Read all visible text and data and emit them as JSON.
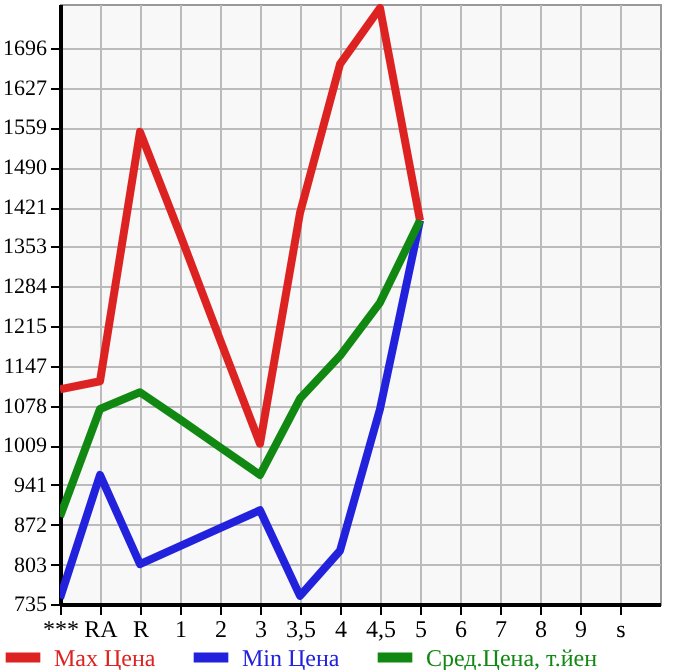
{
  "chart_data": {
    "type": "line",
    "categories": [
      "***",
      "RA",
      "R",
      "1",
      "2",
      "3",
      "3,5",
      "4",
      "4,5",
      "5",
      "6",
      "7",
      "8",
      "9",
      "s"
    ],
    "series": [
      {
        "name": "Max Цена",
        "color": "#dd2222",
        "values": [
          1106,
          1120,
          1551,
          1374,
          1192,
          1012,
          1411,
          1668,
          1765,
          1398,
          null,
          null,
          null,
          null,
          null
        ]
      },
      {
        "name": "Min Цена",
        "color": "#2222dd",
        "values": [
          745,
          958,
          804,
          835,
          866,
          897,
          749,
          827,
          1072,
          1398,
          null,
          null,
          null,
          null,
          null
        ]
      },
      {
        "name": "Сред.Цена, т.йен",
        "color": "#118811",
        "values": [
          886,
          1072,
          1101,
          1054,
          1006,
          958,
          1090,
          1164,
          1256,
          1398,
          null,
          null,
          null,
          null,
          null
        ]
      }
    ],
    "ylim": [
      735,
      1772
    ],
    "yticks": [
      735,
      803,
      872,
      941,
      1009,
      1078,
      1147,
      1215,
      1284,
      1353,
      1421,
      1490,
      1559,
      1627,
      1696
    ],
    "grid": true,
    "legend": "bottom",
    "marker": "none",
    "line_style": "solid"
  }
}
